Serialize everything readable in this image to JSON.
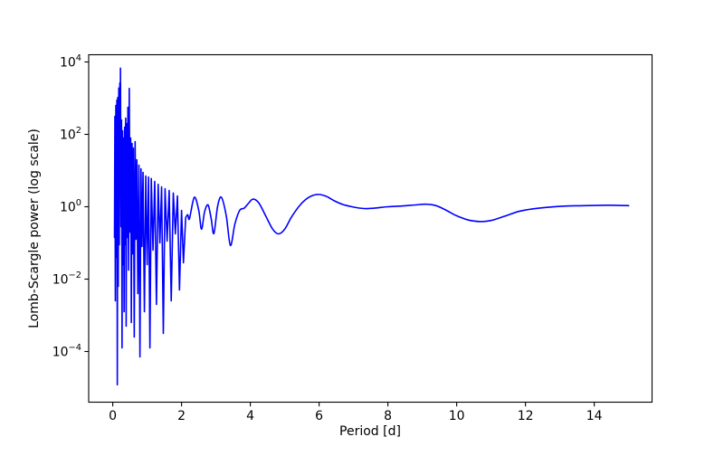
{
  "figure": {
    "background": "#ffffff",
    "frame_color": "#000000"
  },
  "chart_data": {
    "type": "line",
    "title": "",
    "xlabel": "Period [d]",
    "ylabel": "Lomb-Scargle power (log scale)",
    "x_ticks": [
      0,
      2,
      4,
      6,
      8,
      10,
      12,
      14
    ],
    "y_scale": "log",
    "y_tick_base": "10",
    "y_tick_exponents": [
      "4",
      "2",
      "0",
      "−2",
      "−4"
    ],
    "y_tick_log10_values": [
      4,
      2,
      0,
      -2,
      -4
    ],
    "xlim": [
      -0.7,
      15.68
    ],
    "ylim_log10": [
      -5.4,
      4.2
    ],
    "grid": false,
    "legend": "none",
    "line_color": "#0000ff",
    "line_width": 1.6,
    "smooth_from_x": 2.1,
    "series": [
      {
        "name": "Lomb-Scargle power",
        "points_log10": [
          [
            0.05,
            -0.85
          ],
          [
            0.062,
            2.5
          ],
          [
            0.075,
            -2.6
          ],
          [
            0.09,
            2.8
          ],
          [
            0.105,
            -1.4
          ],
          [
            0.12,
            2.95
          ],
          [
            0.132,
            -4.92
          ],
          [
            0.145,
            3.02
          ],
          [
            0.16,
            -2.2
          ],
          [
            0.175,
            3.28
          ],
          [
            0.19,
            -1.05
          ],
          [
            0.205,
            3.42
          ],
          [
            0.215,
            0.7
          ],
          [
            0.224,
            3.83
          ],
          [
            0.24,
            -0.55
          ],
          [
            0.255,
            2.4
          ],
          [
            0.27,
            -3.9
          ],
          [
            0.285,
            2.1
          ],
          [
            0.3,
            -1.6
          ],
          [
            0.315,
            1.9
          ],
          [
            0.33,
            -2.9
          ],
          [
            0.345,
            2.2
          ],
          [
            0.36,
            -1.05
          ],
          [
            0.375,
            2.45
          ],
          [
            0.39,
            -3.3
          ],
          [
            0.405,
            2.3
          ],
          [
            0.42,
            -0.85
          ],
          [
            0.44,
            2.75
          ],
          [
            0.46,
            -1.75
          ],
          [
            0.48,
            3.27
          ],
          [
            0.5,
            -0.7
          ],
          [
            0.52,
            1.9
          ],
          [
            0.54,
            -3.2
          ],
          [
            0.56,
            1.75
          ],
          [
            0.58,
            -1.3
          ],
          [
            0.6,
            1.62
          ],
          [
            0.625,
            -3.6
          ],
          [
            0.65,
            1.8
          ],
          [
            0.675,
            -0.9
          ],
          [
            0.7,
            1.3
          ],
          [
            0.73,
            -2.4
          ],
          [
            0.76,
            1.15
          ],
          [
            0.79,
            -4.15
          ],
          [
            0.82,
            1.05
          ],
          [
            0.85,
            -1.1
          ],
          [
            0.88,
            0.95
          ],
          [
            0.92,
            -2.9
          ],
          [
            0.96,
            0.85
          ],
          [
            1.0,
            -1.6
          ],
          [
            1.04,
            0.82
          ],
          [
            1.08,
            -3.9
          ],
          [
            1.12,
            0.78
          ],
          [
            1.17,
            -1.2
          ],
          [
            1.22,
            0.7
          ],
          [
            1.27,
            -2.7
          ],
          [
            1.32,
            0.62
          ],
          [
            1.37,
            -1.0
          ],
          [
            1.42,
            0.55
          ],
          [
            1.47,
            -3.5
          ],
          [
            1.52,
            0.5
          ],
          [
            1.58,
            -0.95
          ],
          [
            1.64,
            0.45
          ],
          [
            1.7,
            -2.6
          ],
          [
            1.76,
            0.38
          ],
          [
            1.82,
            -0.75
          ],
          [
            1.88,
            0.3
          ],
          [
            1.94,
            -2.3
          ],
          [
            2.0,
            -0.1
          ],
          [
            2.055,
            -1.55
          ],
          [
            2.12,
            -0.3
          ],
          [
            2.18,
            -0.22
          ],
          [
            2.23,
            -0.33
          ],
          [
            2.37,
            0.26
          ],
          [
            2.5,
            -0.1
          ],
          [
            2.58,
            -0.62
          ],
          [
            2.67,
            -0.14
          ],
          [
            2.77,
            0.05
          ],
          [
            2.86,
            -0.32
          ],
          [
            2.94,
            -0.74
          ],
          [
            3.05,
            0.02
          ],
          [
            3.16,
            0.26
          ],
          [
            3.3,
            -0.25
          ],
          [
            3.42,
            -1.07
          ],
          [
            3.55,
            -0.48
          ],
          [
            3.69,
            -0.1
          ],
          [
            3.82,
            -0.04
          ],
          [
            3.95,
            0.1
          ],
          [
            4.08,
            0.21
          ],
          [
            4.25,
            0.1
          ],
          [
            4.45,
            -0.26
          ],
          [
            4.65,
            -0.62
          ],
          [
            4.82,
            -0.75
          ],
          [
            5.0,
            -0.62
          ],
          [
            5.2,
            -0.28
          ],
          [
            5.45,
            0.05
          ],
          [
            5.7,
            0.26
          ],
          [
            5.95,
            0.34
          ],
          [
            6.2,
            0.29
          ],
          [
            6.45,
            0.16
          ],
          [
            6.7,
            0.06
          ],
          [
            7.0,
            -0.01
          ],
          [
            7.3,
            -0.05
          ],
          [
            7.6,
            -0.04
          ],
          [
            8.0,
            0.0
          ],
          [
            8.4,
            0.02
          ],
          [
            8.8,
            0.05
          ],
          [
            9.1,
            0.07
          ],
          [
            9.4,
            0.03
          ],
          [
            9.7,
            -0.1
          ],
          [
            10.0,
            -0.25
          ],
          [
            10.35,
            -0.37
          ],
          [
            10.7,
            -0.41
          ],
          [
            11.0,
            -0.38
          ],
          [
            11.4,
            -0.26
          ],
          [
            11.8,
            -0.13
          ],
          [
            12.2,
            -0.06
          ],
          [
            12.7,
            -0.01
          ],
          [
            13.2,
            0.02
          ],
          [
            13.7,
            0.03
          ],
          [
            14.2,
            0.04
          ],
          [
            14.6,
            0.04
          ],
          [
            15.0,
            0.03
          ]
        ]
      }
    ]
  }
}
